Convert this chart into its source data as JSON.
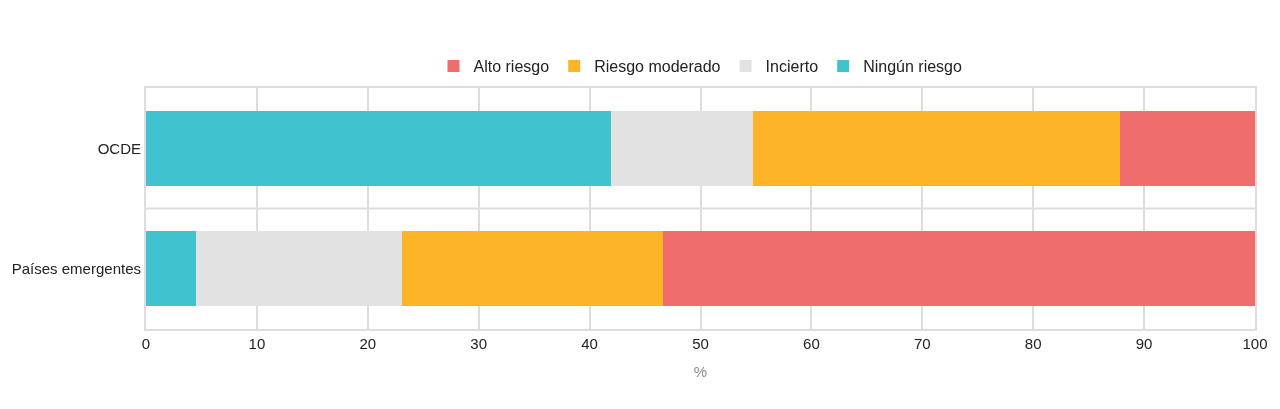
{
  "chart_data": {
    "type": "bar",
    "orientation": "horizontal",
    "stacked": true,
    "xlabel": "%",
    "categories": [
      "OCDE",
      "Países emergentes"
    ],
    "series": [
      {
        "name": "Ningún riesgo",
        "color": "#41c3cf",
        "values": [
          41.9,
          4.5
        ]
      },
      {
        "name": "Incierto",
        "color": "#e2e2e2",
        "values": [
          12.8,
          18.6
        ]
      },
      {
        "name": "Riesgo moderado",
        "color": "#fdb427",
        "values": [
          33.1,
          23.5
        ]
      },
      {
        "name": "Alto riesgo",
        "color": "#ef6e6d",
        "values": [
          12.2,
          53.4
        ]
      }
    ],
    "xlim": [
      0,
      100
    ],
    "xticks": [
      0,
      10,
      20,
      30,
      40,
      50,
      60,
      70,
      80,
      90,
      100
    ],
    "grid": "x",
    "legend": "top"
  }
}
